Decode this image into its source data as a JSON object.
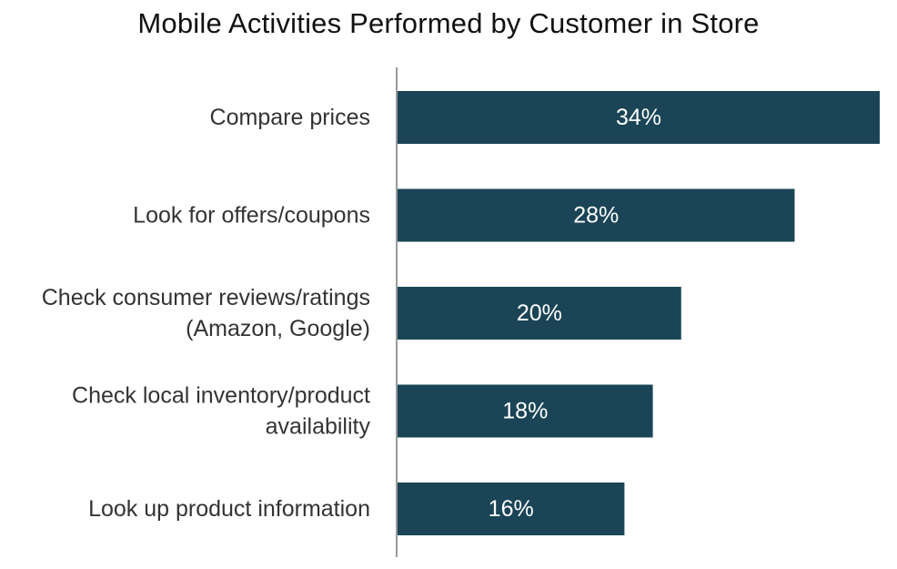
{
  "chart_data": {
    "type": "bar",
    "orientation": "horizontal",
    "title": "Mobile Activities Performed by Customer in Store",
    "categories": [
      [
        "Compare prices"
      ],
      [
        "Look for offers/coupons"
      ],
      [
        "Check consumer reviews/ratings",
        "(Amazon, Google)"
      ],
      [
        "Check local inventory/product",
        "availability"
      ],
      [
        "Look up product information"
      ]
    ],
    "values": [
      34,
      28,
      20,
      18,
      16
    ],
    "value_labels": [
      "34%",
      "28%",
      "20%",
      "18%",
      "16%"
    ],
    "xlim": [
      0,
      34
    ],
    "grid": false,
    "legend": "none",
    "bar_color": "#1b4556",
    "axis_color": "#9a9a9a"
  }
}
